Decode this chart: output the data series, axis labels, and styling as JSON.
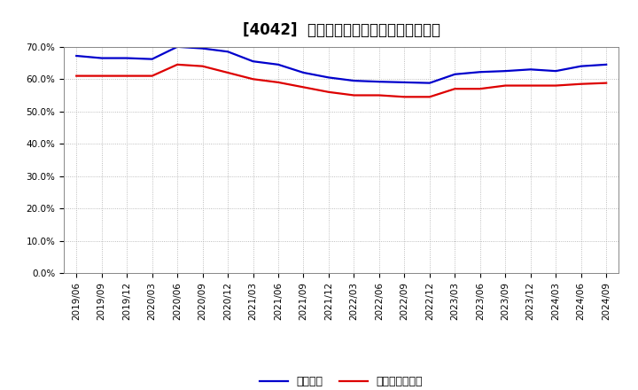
{
  "title": "[4042]  固定比率、固定長期適合率の推移",
  "series1_label": "固定比率",
  "series2_label": "固定長期適合率",
  "series1_color": "#0000cc",
  "series2_color": "#dd0000",
  "xlabels": [
    "2019/06",
    "2019/09",
    "2019/12",
    "2020/03",
    "2020/06",
    "2020/09",
    "2020/12",
    "2021/03",
    "2021/06",
    "2021/09",
    "2021/12",
    "2022/03",
    "2022/06",
    "2022/09",
    "2022/12",
    "2023/03",
    "2023/06",
    "2023/09",
    "2023/12",
    "2024/03",
    "2024/06",
    "2024/09"
  ],
  "series1_values": [
    67.2,
    66.5,
    66.5,
    66.2,
    70.0,
    69.5,
    68.5,
    65.5,
    64.5,
    62.0,
    60.5,
    59.5,
    59.2,
    59.0,
    58.8,
    61.5,
    62.2,
    62.5,
    63.0,
    62.5,
    64.0,
    64.5
  ],
  "series2_values": [
    61.0,
    61.0,
    61.0,
    61.0,
    64.5,
    64.0,
    62.0,
    60.0,
    59.0,
    57.5,
    56.0,
    55.0,
    55.0,
    54.5,
    54.5,
    57.0,
    57.0,
    58.0,
    58.0,
    58.0,
    58.5,
    58.8
  ],
  "ylim": [
    0.0,
    70.0
  ],
  "yticks": [
    0.0,
    10.0,
    20.0,
    30.0,
    40.0,
    50.0,
    60.0,
    70.0
  ],
  "background_color": "#ffffff",
  "plot_bg_color": "#ffffff",
  "grid_color": "#aaaaaa",
  "title_fontsize": 12,
  "legend_fontsize": 9,
  "tick_fontsize": 7.5,
  "line_width": 1.6
}
